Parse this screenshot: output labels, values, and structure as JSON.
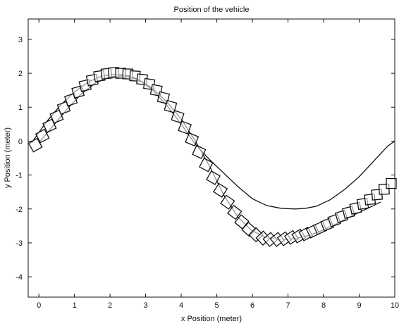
{
  "chart_data": {
    "type": "line",
    "title": "Position of the vehicle",
    "xlabel": "x Position (meter)",
    "ylabel": "y Position (meter)",
    "xlim": [
      -0.3,
      10
    ],
    "ylim": [
      -4.6,
      3.6
    ],
    "xticks": [
      0,
      1,
      2,
      3,
      4,
      5,
      6,
      7,
      8,
      9,
      10
    ],
    "yticks": [
      3,
      2,
      1,
      0,
      -1,
      -2,
      -3,
      -4
    ],
    "grid": false,
    "legend": "none",
    "series": [
      {
        "style": "thin-line",
        "color": "#111111",
        "x": [
          -0.2,
          0.2,
          0.6,
          1.0,
          1.4,
          1.8,
          2.2,
          2.5,
          2.8,
          3.2,
          3.6,
          4.0,
          4.4,
          4.8,
          5.2,
          5.6,
          6.0,
          6.4,
          6.8,
          7.2,
          7.5,
          7.8,
          8.2,
          8.6,
          9.0,
          9.4,
          9.8,
          10.0
        ],
        "y": [
          -0.05,
          0.55,
          1.05,
          1.45,
          1.75,
          1.93,
          1.97,
          1.93,
          1.82,
          1.5,
          1.05,
          0.5,
          -0.1,
          -0.55,
          -0.95,
          -1.35,
          -1.7,
          -1.9,
          -1.98,
          -2.0,
          -1.98,
          -1.92,
          -1.72,
          -1.42,
          -1.05,
          -0.6,
          -0.15,
          0.0
        ]
      },
      {
        "style": "thin-line",
        "color": "#111111",
        "x": [
          0.0,
          0.4,
          0.8,
          1.2,
          1.6,
          2.0,
          2.3,
          2.6,
          2.9,
          3.2,
          3.6,
          4.0,
          4.4,
          4.8,
          5.2,
          5.6,
          6.0,
          6.4,
          6.8,
          7.2,
          7.6,
          8.0,
          8.4,
          8.8,
          9.2,
          9.6
        ],
        "y": [
          -0.05,
          0.45,
          0.95,
          1.4,
          1.72,
          1.9,
          1.92,
          1.88,
          1.75,
          1.55,
          1.15,
          0.65,
          0.0,
          -0.75,
          -1.6,
          -2.25,
          -2.65,
          -2.85,
          -2.9,
          -2.88,
          -2.78,
          -2.62,
          -2.42,
          -2.2,
          -2.0,
          -1.8
        ]
      },
      {
        "style": "rotated-square-markers",
        "color": "#111111",
        "x": [
          -0.1,
          0.1,
          0.3,
          0.5,
          0.7,
          0.9,
          1.1,
          1.3,
          1.5,
          1.7,
          1.9,
          2.1,
          2.3,
          2.5,
          2.7,
          2.9,
          3.1,
          3.3,
          3.5,
          3.7,
          3.9,
          4.1,
          4.3,
          4.5,
          4.7,
          4.9,
          5.1,
          5.3,
          5.5,
          5.7,
          5.9,
          6.1,
          6.3,
          6.5,
          6.7,
          6.9,
          7.1,
          7.3,
          7.5,
          7.7,
          7.9,
          8.1,
          8.3,
          8.5,
          8.7,
          8.9,
          9.1,
          9.3,
          9.5,
          9.7,
          9.9
        ],
        "y": [
          -0.12,
          0.15,
          0.45,
          0.72,
          0.98,
          1.22,
          1.45,
          1.64,
          1.8,
          1.92,
          1.99,
          2.02,
          2.0,
          1.98,
          1.92,
          1.82,
          1.68,
          1.5,
          1.28,
          1.02,
          0.72,
          0.4,
          0.05,
          -0.32,
          -0.7,
          -1.08,
          -1.45,
          -1.8,
          -2.1,
          -2.38,
          -2.6,
          -2.76,
          -2.86,
          -2.9,
          -2.9,
          -2.88,
          -2.84,
          -2.8,
          -2.74,
          -2.66,
          -2.56,
          -2.46,
          -2.34,
          -2.22,
          -2.1,
          -1.98,
          -1.85,
          -1.72,
          -1.58,
          -1.42,
          -1.25
        ]
      }
    ]
  }
}
